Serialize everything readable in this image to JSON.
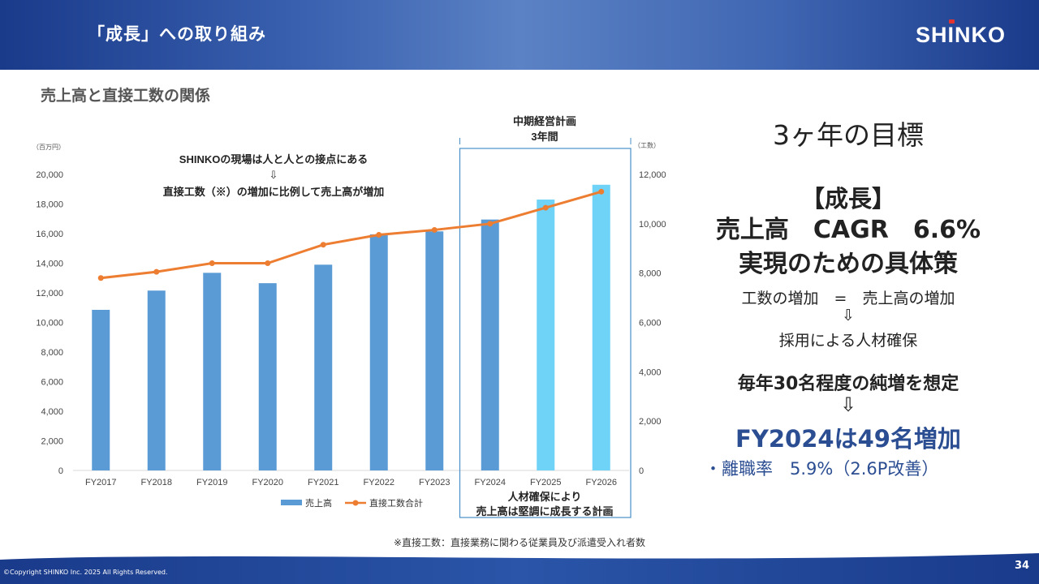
{
  "header": {
    "title": "「成長」への取り組み",
    "logo": "SHiNKO"
  },
  "subtitle": "売上高と直接工数の関係",
  "callouts": {
    "top_line1": "SHINKOの現場は人と人との接点にある",
    "top_arrow": "⇩",
    "top_line2": "直接工数（※）の増加に比例して売上高が増加",
    "plan_line1": "中期経営計画",
    "plan_line2": "3年間",
    "bottom_line1": "人材確保により",
    "bottom_line2": "売上高は堅調に成長する計画"
  },
  "chart_data": {
    "type": "bar+line",
    "categories": [
      "FY2017",
      "FY2018",
      "FY2019",
      "FY2020",
      "FY2021",
      "FY2022",
      "FY2023",
      "FY2024",
      "FY2025",
      "FY2026"
    ],
    "series": [
      {
        "name": "売上高",
        "type": "bar",
        "axis": "left",
        "color": "#5b9bd5",
        "plan_color": "#6fd3f7",
        "values": [
          10850,
          12150,
          13350,
          12650,
          13900,
          15950,
          16150,
          16950,
          18300,
          19300
        ]
      },
      {
        "name": "直接工数合計",
        "type": "line",
        "axis": "right",
        "color": "#ed7d31",
        "values": [
          7800,
          8050,
          8400,
          8400,
          9150,
          9550,
          9750,
          10000,
          10650,
          11300
        ]
      }
    ],
    "plan_from_index": 8,
    "left_axis": {
      "unit": "（百万円）",
      "min": 0,
      "max": 20000,
      "step": 2000,
      "ticks": [
        "0",
        "2,000",
        "4,000",
        "6,000",
        "8,000",
        "10,000",
        "12,000",
        "14,000",
        "16,000",
        "18,000",
        "20,000"
      ]
    },
    "right_axis": {
      "unit": "（工数）",
      "min": 0,
      "max": 12000,
      "step": 2000,
      "ticks": [
        "0",
        "2,000",
        "4,000",
        "6,000",
        "8,000",
        "10,000",
        "12,000"
      ]
    },
    "legend_position": "bottom"
  },
  "right_panel": {
    "goal_title": "3ヶ年の目標",
    "growth": "【成長】",
    "cagr": "売上高　CAGR　6.6%",
    "measures": "実現のための具体策",
    "equation": "工数の増加　=　売上高の増加",
    "arrow1": "⇩",
    "hiring": "採用による人材確保",
    "net_increase": "毎年30名程度の純増を想定",
    "arrow2": "⇩",
    "fy_increase": "FY2024は49名増加",
    "turnover": "・離職率　5.9%（2.6P改善）"
  },
  "footnote": "※直接工数：直接業務に関わる従業員及び派遣受入れ者数",
  "footer": {
    "copyright": "©Copyright SHINKO Inc. 2025 All Rights Reserved.",
    "page": "34"
  }
}
